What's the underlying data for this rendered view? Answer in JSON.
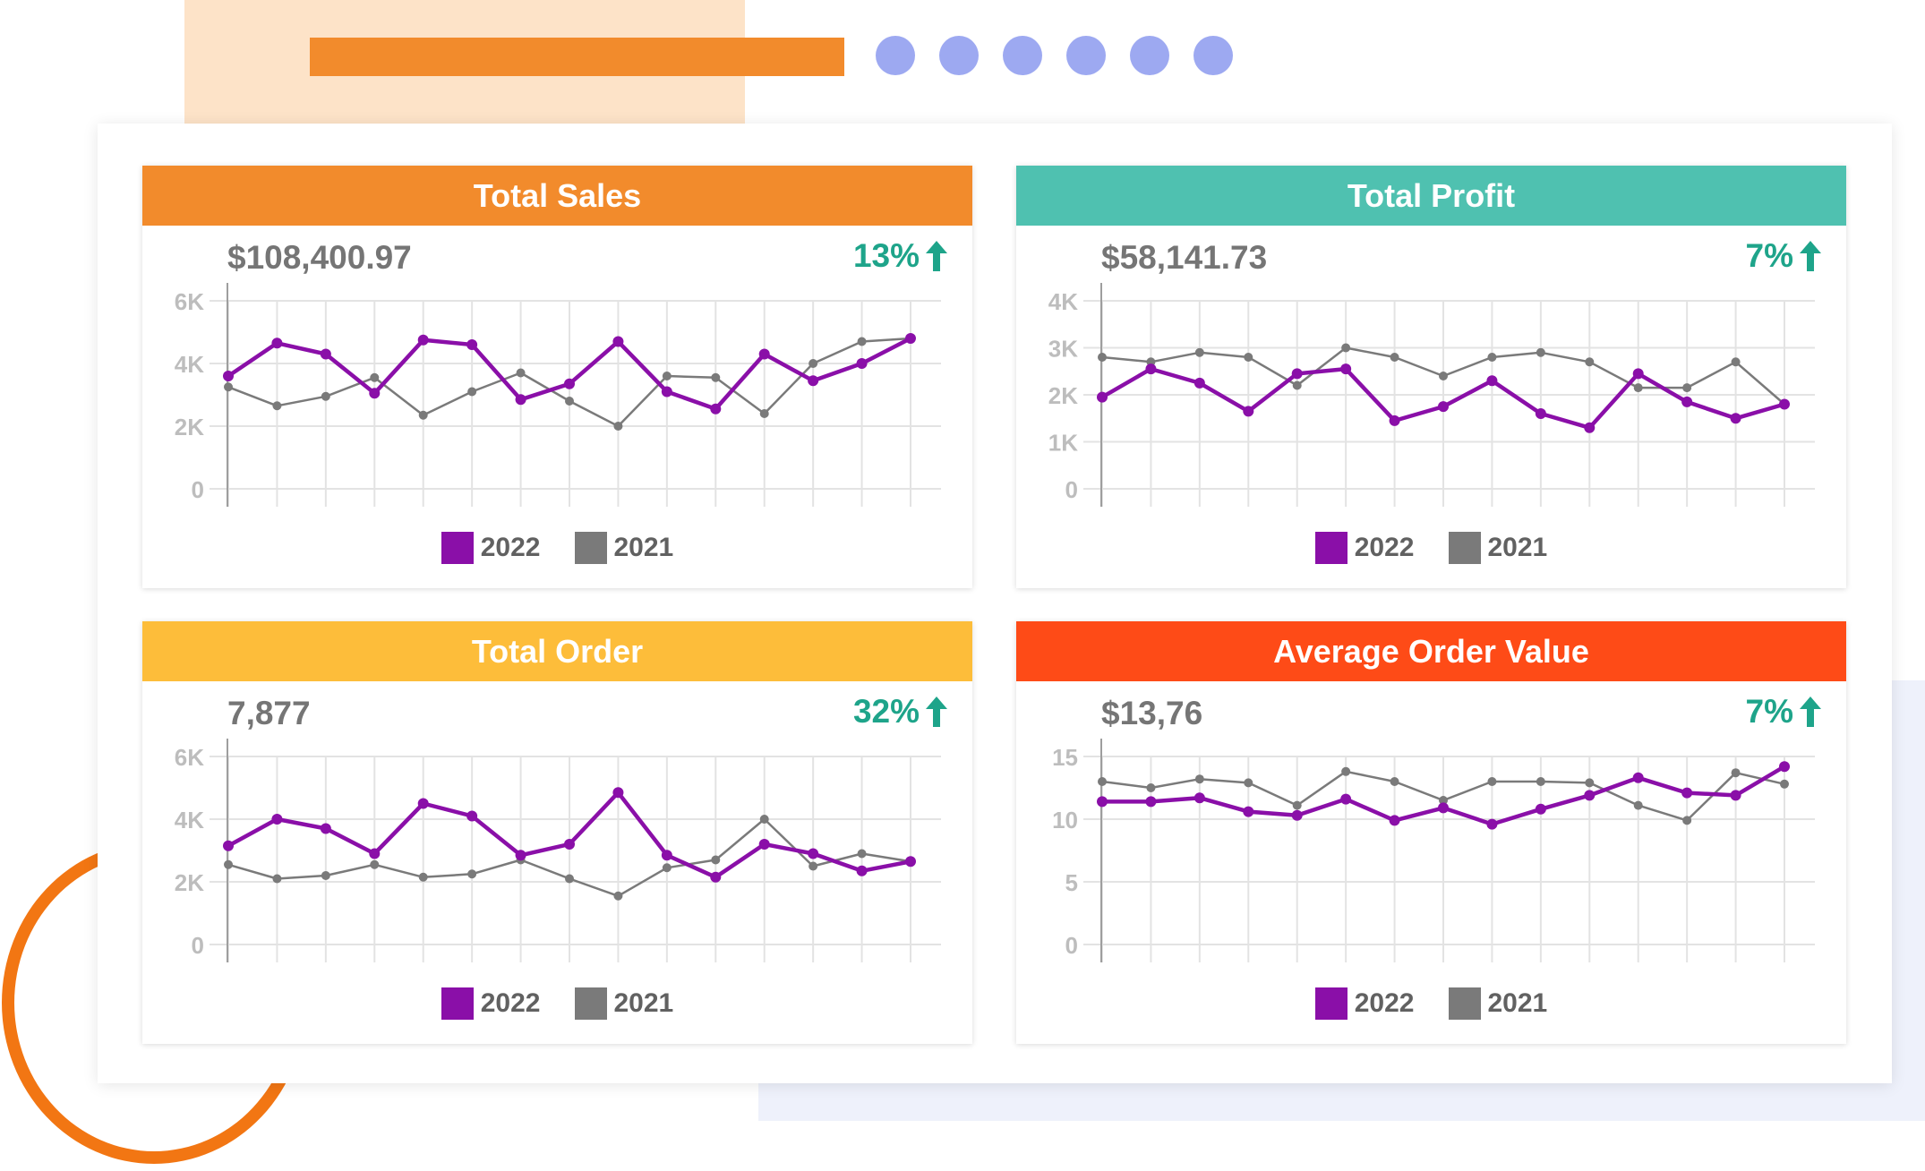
{
  "chart_data": [
    {
      "type": "line",
      "title": "Total Sales",
      "header_color": "#f28b2c",
      "value": "$108,400.97",
      "change": "13%",
      "change_direction": "up",
      "y_ticks": [
        "0",
        "2K",
        "4K",
        "6K"
      ],
      "ylim": [
        0,
        6000
      ],
      "grid": true,
      "legend_position": "bottom",
      "series": [
        {
          "name": "2022",
          "color": "#8a0fa8",
          "values": [
            3600,
            4650,
            4300,
            3050,
            4750,
            4600,
            2850,
            3350,
            4700,
            3100,
            2550,
            4300,
            3450,
            4000,
            4800
          ]
        },
        {
          "name": "2021",
          "color": "#7a7a7a",
          "values": [
            3250,
            2650,
            2950,
            3550,
            2350,
            3100,
            3700,
            2800,
            2000,
            3600,
            3550,
            2400,
            4000,
            4700,
            4800
          ]
        }
      ]
    },
    {
      "type": "line",
      "title": "Total Profit",
      "header_color": "#4fc1b0",
      "value": "$58,141.73",
      "change": "7%",
      "change_direction": "up",
      "y_ticks": [
        "0",
        "1K",
        "2K",
        "3K",
        "4K"
      ],
      "ylim": [
        0,
        4000
      ],
      "grid": true,
      "legend_position": "bottom",
      "series": [
        {
          "name": "2022",
          "color": "#8a0fa8",
          "values": [
            1950,
            2550,
            2250,
            1650,
            2450,
            2550,
            1450,
            1750,
            2300,
            1600,
            1300,
            2450,
            1850,
            1500,
            1800
          ]
        },
        {
          "name": "2021",
          "color": "#7a7a7a",
          "values": [
            2800,
            2700,
            2900,
            2800,
            2200,
            3000,
            2800,
            2400,
            2800,
            2900,
            2700,
            2150,
            2150,
            2700,
            1800
          ]
        }
      ]
    },
    {
      "type": "line",
      "title": "Total Order",
      "header_color": "#fdbd3a",
      "value": "7,877",
      "change": "32%",
      "change_direction": "up",
      "y_ticks": [
        "0",
        "2K",
        "4K",
        "6K"
      ],
      "ylim": [
        0,
        6000
      ],
      "grid": true,
      "legend_position": "bottom",
      "series": [
        {
          "name": "2022",
          "color": "#8a0fa8",
          "values": [
            3150,
            4000,
            3700,
            2900,
            4500,
            4100,
            2850,
            3200,
            4850,
            2850,
            2150,
            3200,
            2900,
            2350,
            2650
          ]
        },
        {
          "name": "2021",
          "color": "#7a7a7a",
          "values": [
            2550,
            2100,
            2200,
            2550,
            2150,
            2250,
            2700,
            2100,
            1550,
            2450,
            2700,
            4000,
            2500,
            2900,
            2650
          ]
        }
      ]
    },
    {
      "type": "line",
      "title": "Average Order Value",
      "header_color": "#fe4b17",
      "value": "$13,76",
      "change": "7%",
      "change_direction": "up",
      "y_ticks": [
        "0",
        "5",
        "10",
        "15"
      ],
      "ylim": [
        0,
        15
      ],
      "grid": true,
      "legend_position": "bottom",
      "series": [
        {
          "name": "2022",
          "color": "#8a0fa8",
          "values": [
            11.4,
            11.4,
            11.7,
            10.6,
            10.3,
            11.6,
            9.9,
            10.9,
            9.6,
            10.8,
            11.9,
            13.3,
            12.1,
            11.9,
            14.2
          ]
        },
        {
          "name": "2021",
          "color": "#7a7a7a",
          "values": [
            13.0,
            12.5,
            13.2,
            12.9,
            11.1,
            13.8,
            13.0,
            11.5,
            13.0,
            13.0,
            12.9,
            11.1,
            9.9,
            13.7,
            12.8
          ]
        }
      ]
    }
  ]
}
